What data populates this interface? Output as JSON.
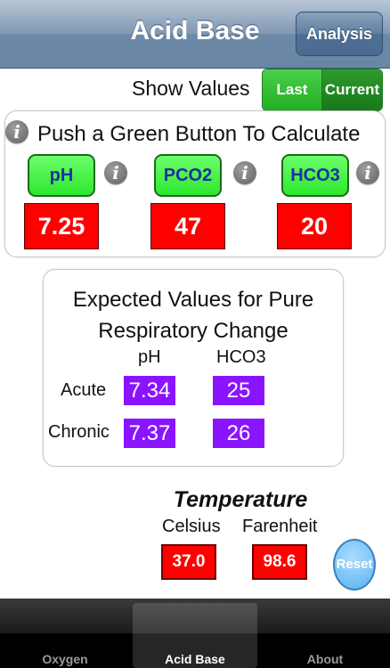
{
  "header": {
    "title": "Acid Base",
    "analysis_label": "Analysis"
  },
  "show_values": {
    "label": "Show Values",
    "last": "Last",
    "current": "Current"
  },
  "calculate": {
    "heading": "Push a Green Button To Calculate",
    "buttons": [
      {
        "label": "pH",
        "value": "7.25"
      },
      {
        "label": "PCO2",
        "value": "47"
      },
      {
        "label": "HCO3",
        "value": "20"
      }
    ]
  },
  "expected": {
    "title_line1": "Expected Values for Pure",
    "title_line2": "Respiratory Change",
    "col_ph": "pH",
    "col_hco3": "HCO3",
    "rows": [
      {
        "label": "Acute",
        "ph": "7.34",
        "hco3": "25"
      },
      {
        "label": "Chronic",
        "ph": "7.37",
        "hco3": "26"
      }
    ]
  },
  "temperature": {
    "title": "Temperature",
    "celsius_label": "Celsius",
    "farenheit_label": "Farenheit",
    "celsius_value": "37.0",
    "farenheit_value": "98.6",
    "reset_label": "Reset"
  },
  "tabs": [
    {
      "label": "Oxygen",
      "active": false
    },
    {
      "label": "Acid Base",
      "active": true
    },
    {
      "label": "About",
      "active": false
    }
  ],
  "colors": {
    "green_button": "#3ef03e",
    "value_red": "#ff0000",
    "purple": "#8a14ff",
    "reset_blue": "#6cbcf4"
  }
}
